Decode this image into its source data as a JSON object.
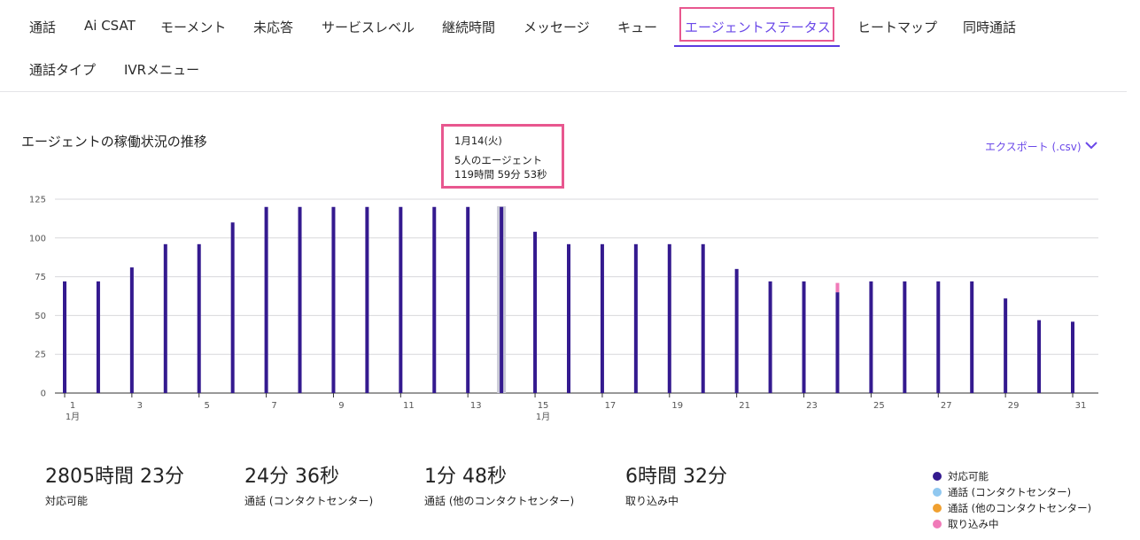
{
  "tabs": [
    {
      "label": "通話"
    },
    {
      "label": "Ai CSAT"
    },
    {
      "label": "モーメント"
    },
    {
      "label": "未応答"
    },
    {
      "label": "サービスレベル"
    },
    {
      "label": "継続時間"
    },
    {
      "label": "メッセージ"
    },
    {
      "label": "キュー"
    },
    {
      "label": "エージェントステータス",
      "active": true
    },
    {
      "label": "ヒートマップ"
    },
    {
      "label": "同時通話"
    },
    {
      "label": "通話タイプ"
    },
    {
      "label": "IVRメニュー"
    }
  ],
  "section_title": "エージェントの稼働状況の推移",
  "export_label": "エクスポート (.csv)",
  "tooltip": {
    "date": "1月14(火)",
    "agents": "5人のエージェント",
    "duration": "119時間 59分 53秒"
  },
  "colors": {
    "available": "#341a8f",
    "call_contact_center": "#90c8f0",
    "call_other_center": "#f0a030",
    "capture": "#f07ab8",
    "accent": "#6a48e8",
    "highlight_border": "#e8578f"
  },
  "chart_data": {
    "type": "bar",
    "x": [
      1,
      2,
      3,
      4,
      5,
      6,
      7,
      8,
      9,
      10,
      11,
      12,
      13,
      14,
      15,
      16,
      17,
      18,
      19,
      20,
      21,
      22,
      23,
      24,
      25,
      26,
      27,
      28,
      29,
      30,
      31
    ],
    "x_tick_labels": [
      "1",
      "3",
      "5",
      "7",
      "9",
      "11",
      "13",
      "15",
      "17",
      "19",
      "21",
      "23",
      "25",
      "27",
      "29",
      "31"
    ],
    "x_tick_sublabels": {
      "1": "1月",
      "15": "1月"
    },
    "y_ticks": [
      0,
      25,
      50,
      75,
      100,
      125
    ],
    "ylim": [
      0,
      125
    ],
    "grid": true,
    "legend_position": "bottom-right",
    "highlight_x": 14,
    "series": [
      {
        "name": "対応可能",
        "color_key": "available",
        "values": [
          72,
          72,
          81,
          96,
          96,
          110,
          120,
          120,
          120,
          120,
          120,
          120,
          120,
          120,
          104,
          96,
          96,
          96,
          96,
          96,
          80,
          72,
          72,
          65,
          72,
          72,
          72,
          72,
          61,
          47,
          46
        ]
      },
      {
        "name": "通話 (コンタクトセンター)",
        "color_key": "call_contact_center",
        "values": [
          0,
          0,
          0,
          0,
          0,
          0,
          0,
          0,
          0,
          0,
          0,
          0,
          0,
          0,
          0,
          0,
          0,
          0,
          0,
          0,
          0,
          0,
          0,
          0,
          0,
          0,
          0,
          0,
          0,
          0,
          0
        ]
      },
      {
        "name": "通話 (他のコンタクトセンター)",
        "color_key": "call_other_center",
        "values": [
          0,
          0,
          0,
          0,
          0,
          0,
          0,
          0,
          0,
          0,
          0,
          0,
          0,
          0,
          0,
          0,
          0,
          0,
          0,
          0,
          0,
          0,
          0,
          0,
          0,
          0,
          0,
          0,
          0,
          0,
          0
        ]
      },
      {
        "name": "取り込み中",
        "color_key": "capture",
        "values": [
          0,
          0,
          0,
          0,
          0,
          0,
          0,
          0,
          0,
          0,
          0,
          0,
          0,
          0,
          0,
          0,
          0,
          0,
          0,
          0,
          0,
          0,
          0,
          6,
          0,
          0,
          0,
          0,
          0,
          0,
          0
        ]
      }
    ]
  },
  "stats": [
    {
      "value": "2805時間 23分",
      "label": "対応可能"
    },
    {
      "value": "24分 36秒",
      "label": "通話 (コンタクトセンター)"
    },
    {
      "value": "1分 48秒",
      "label": "通話 (他のコンタクトセンター)"
    },
    {
      "value": "6時間 32分",
      "label": "取り込み中"
    }
  ],
  "legend": [
    {
      "label": "対応可能",
      "color_key": "available"
    },
    {
      "label": "通話 (コンタクトセンター)",
      "color_key": "call_contact_center"
    },
    {
      "label": "通話 (他のコンタクトセンター)",
      "color_key": "call_other_center"
    },
    {
      "label": "取り込み中",
      "color_key": "capture"
    }
  ]
}
